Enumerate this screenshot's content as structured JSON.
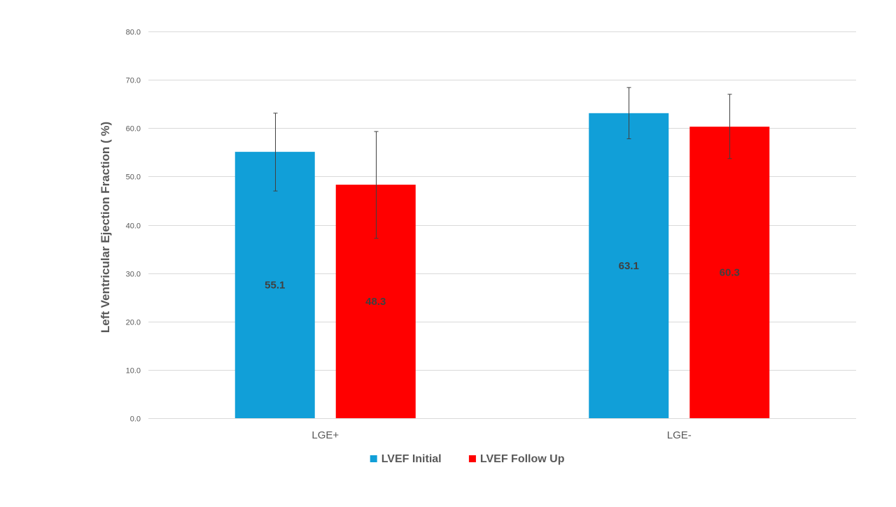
{
  "chart_data": {
    "type": "bar",
    "title": "",
    "xlabel": "",
    "ylabel": "Left Ventricular Ejection Fraction ( %)",
    "ylim": [
      0,
      80
    ],
    "yticks": [
      "0.0",
      "10.0",
      "20.0",
      "30.0",
      "40.0",
      "50.0",
      "60.0",
      "70.0",
      "80.0"
    ],
    "grid": true,
    "legend_position": "bottom",
    "categories": [
      "LGE+",
      "LGE-"
    ],
    "series": [
      {
        "name": "LVEF Initial",
        "color": "#119fd8",
        "values": [
          55.1,
          63.1
        ],
        "labels": [
          "55.1",
          "63.1"
        ],
        "error_low": [
          47.0,
          57.8
        ],
        "error_high": [
          63.1,
          68.4
        ]
      },
      {
        "name": "LVEF Follow Up",
        "color": "#ff0000",
        "values": [
          48.3,
          60.3
        ],
        "labels": [
          "48.3",
          "60.3"
        ],
        "error_low": [
          37.2,
          53.7
        ],
        "error_high": [
          59.3,
          67.0
        ]
      }
    ]
  }
}
